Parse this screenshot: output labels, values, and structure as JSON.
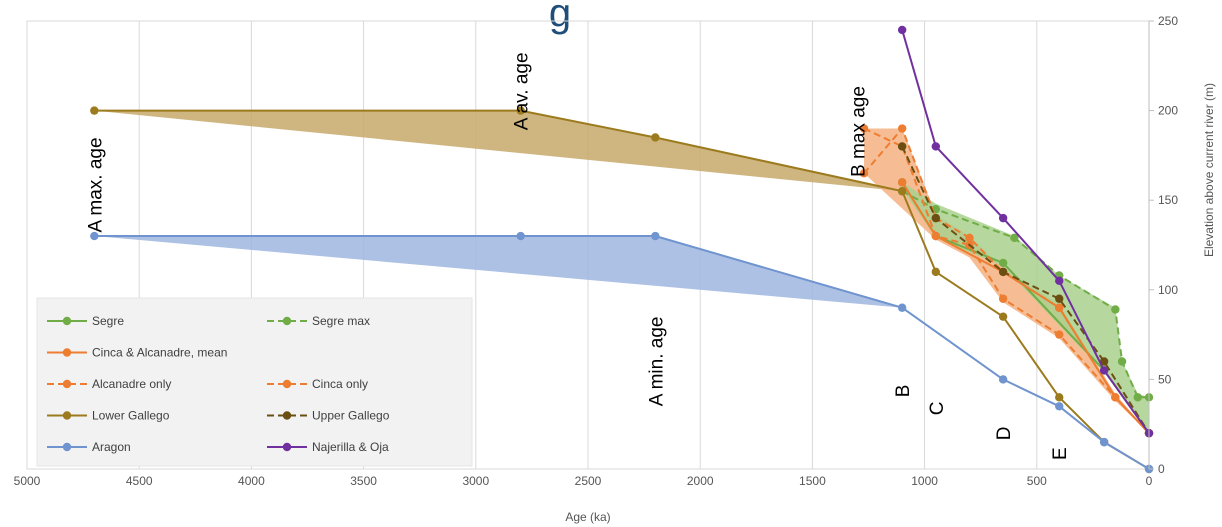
{
  "chart_data": {
    "type": "line",
    "title_fragment": "g",
    "xlabel": "Age (ka)",
    "ylabel": "Elevation above current river (m)",
    "xlim": [
      5000,
      0
    ],
    "ylim": [
      0,
      250
    ],
    "x_reversed": true,
    "y_axis_side": "right",
    "grid": "vertical",
    "legend_placement": "bottom-left",
    "x_ticks": [
      "5000",
      "4500",
      "4000",
      "3500",
      "3000",
      "2500",
      "2000",
      "1500",
      "1000",
      "500",
      "0"
    ],
    "y_ticks": [
      "0",
      "50",
      "100",
      "150",
      "200",
      "250"
    ],
    "colors": {
      "green": "#70ad47",
      "orange": "#ed7d31",
      "brown": "#9c7b1e",
      "darkbrown": "#6b4f12",
      "blue": "#6f94cf",
      "purple": "#7030a0",
      "green_fill": "#a9d18e",
      "orange_fill": "#f4b183",
      "brown_fill": "#c7a868",
      "blue_fill": "#9fb6df"
    },
    "series": [
      {
        "name": "Segre",
        "color": "green",
        "dash": false,
        "points": [
          [
            1100,
            160
          ],
          [
            950,
            130
          ],
          [
            650,
            115
          ],
          [
            200,
            55
          ],
          [
            0,
            20
          ]
        ]
      },
      {
        "name": "Segre max",
        "color": "green",
        "dash": true,
        "points": [
          [
            1100,
            155
          ],
          [
            950,
            145
          ],
          [
            600,
            129
          ],
          [
            400,
            108
          ],
          [
            150,
            89
          ],
          [
            120,
            60
          ],
          [
            50,
            40
          ],
          [
            0,
            40
          ]
        ]
      },
      {
        "name": "Cinca & Alcanadre, mean",
        "color": "orange",
        "dash": false,
        "points": [
          [
            1100,
            160
          ],
          [
            950,
            130
          ],
          [
            650,
            110
          ],
          [
            400,
            90
          ],
          [
            150,
            40
          ],
          [
            0,
            20
          ]
        ]
      },
      {
        "name": "Alcanadre only",
        "color": "orange",
        "dash": true,
        "points": [
          [
            1270,
            190
          ],
          [
            1100,
            180
          ],
          [
            950,
            130
          ],
          [
            800,
            125
          ],
          [
            650,
            95
          ],
          [
            400,
            75
          ],
          [
            150,
            40
          ],
          [
            0,
            20
          ]
        ]
      },
      {
        "name": "Cinca only",
        "color": "orange",
        "dash": true,
        "points": [
          [
            1270,
            165
          ],
          [
            1100,
            190
          ],
          [
            950,
            140
          ],
          [
            800,
            129
          ],
          [
            650,
            110
          ],
          [
            400,
            90
          ],
          [
            150,
            40
          ],
          [
            0,
            20
          ]
        ]
      },
      {
        "name": "Lower Gallego",
        "color": "brown",
        "dash": false,
        "points": [
          [
            4700,
            200
          ],
          [
            2800,
            200
          ],
          [
            2200,
            185
          ],
          [
            1100,
            155
          ],
          [
            950,
            110
          ],
          [
            650,
            85
          ],
          [
            400,
            40
          ],
          [
            200,
            15
          ],
          [
            0,
            0
          ]
        ]
      },
      {
        "name": "Upper Gallego",
        "color": "darkbrown",
        "dash": true,
        "points": [
          [
            1100,
            180
          ],
          [
            950,
            140
          ],
          [
            650,
            110
          ],
          [
            400,
            95
          ],
          [
            200,
            60
          ],
          [
            0,
            20
          ]
        ]
      },
      {
        "name": "Aragon",
        "color": "blue",
        "dash": false,
        "points": [
          [
            4700,
            130
          ],
          [
            2800,
            130
          ],
          [
            2200,
            130
          ],
          [
            1100,
            90
          ],
          [
            650,
            50
          ],
          [
            400,
            35
          ],
          [
            200,
            15
          ],
          [
            0,
            0
          ]
        ]
      },
      {
        "name": "Najerilla & Oja",
        "color": "purple",
        "dash": false,
        "points": [
          [
            1100,
            245
          ],
          [
            950,
            180
          ],
          [
            650,
            140
          ],
          [
            400,
            105
          ],
          [
            200,
            55
          ],
          [
            0,
            20
          ]
        ]
      }
    ],
    "bands": [
      {
        "color": "brown_fill",
        "polygon": [
          [
            4700,
            200
          ],
          [
            2800,
            200
          ],
          [
            2200,
            185
          ],
          [
            1100,
            155
          ],
          [
            4700,
            200
          ]
        ]
      },
      {
        "color": "blue_fill",
        "polygon": [
          [
            4700,
            130
          ],
          [
            2200,
            130
          ],
          [
            1100,
            90
          ],
          [
            4700,
            130
          ]
        ]
      },
      {
        "color": "orange_fill",
        "polygon": [
          [
            1270,
            190
          ],
          [
            1100,
            190
          ],
          [
            950,
            142
          ],
          [
            800,
            130
          ],
          [
            650,
            112
          ],
          [
            400,
            92
          ],
          [
            150,
            42
          ],
          [
            0,
            20
          ],
          [
            150,
            38
          ],
          [
            400,
            73
          ],
          [
            650,
            93
          ],
          [
            800,
            118
          ],
          [
            950,
            128
          ],
          [
            1270,
            165
          ]
        ]
      },
      {
        "color": "green_fill",
        "polygon": [
          [
            1100,
            160
          ],
          [
            950,
            148
          ],
          [
            600,
            130
          ],
          [
            400,
            108
          ],
          [
            150,
            90
          ],
          [
            120,
            60
          ],
          [
            50,
            42
          ],
          [
            0,
            40
          ],
          [
            0,
            20
          ],
          [
            200,
            54
          ],
          [
            650,
            113
          ],
          [
            950,
            129
          ],
          [
            1100,
            156
          ]
        ]
      }
    ],
    "annotations": [
      {
        "text": "A max. age",
        "x": 4700,
        "y": 132
      },
      {
        "text": "A av. age",
        "x": 2800,
        "y": 189
      },
      {
        "text": "A min. age",
        "x": 2200,
        "y": 35
      },
      {
        "text": "B max age",
        "x": 1300,
        "y": 163
      },
      {
        "text": "B",
        "x": 1100,
        "y": 40
      },
      {
        "text": "C",
        "x": 950,
        "y": 30
      },
      {
        "text": "D",
        "x": 650,
        "y": 16
      },
      {
        "text": "E",
        "x": 400,
        "y": 5
      }
    ],
    "legend": [
      {
        "label": "Segre",
        "color": "green",
        "dash": false
      },
      {
        "label": "Segre max",
        "color": "green",
        "dash": true
      },
      {
        "label": "Cinca & Alcanadre, mean",
        "color": "orange",
        "dash": false
      },
      {
        "label": "",
        "color": "",
        "dash": false
      },
      {
        "label": "Alcanadre only",
        "color": "orange",
        "dash": true
      },
      {
        "label": "Cinca only",
        "color": "orange",
        "dash": true
      },
      {
        "label": "Lower Gallego",
        "color": "brown",
        "dash": false
      },
      {
        "label": "Upper Gallego",
        "color": "darkbrown",
        "dash": true
      },
      {
        "label": "Aragon",
        "color": "blue",
        "dash": false
      },
      {
        "label": "Najerilla & Oja",
        "color": "purple",
        "dash": false
      }
    ]
  }
}
